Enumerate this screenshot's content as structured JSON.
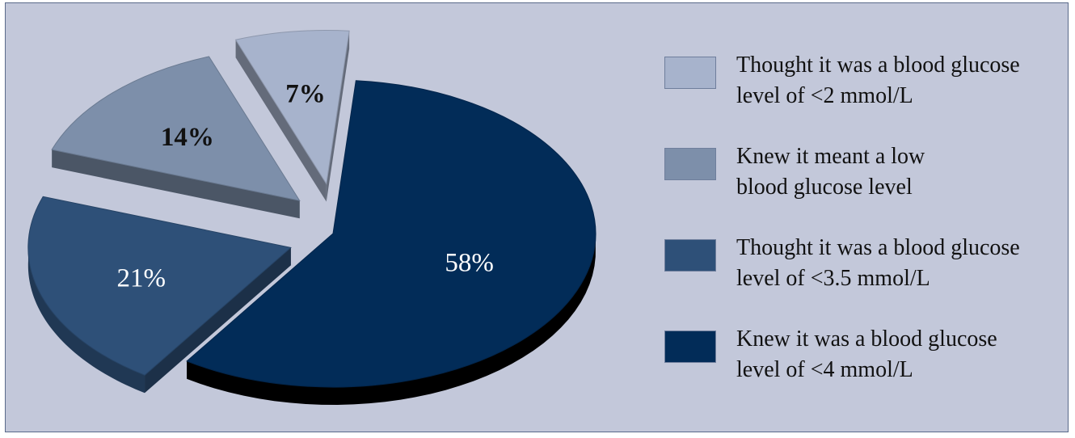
{
  "chart_data": {
    "type": "pie",
    "title": "",
    "slices": [
      {
        "label": "Knew it was a blood glucose level of <4 mmol/L",
        "legend_lines": [
          "Knew it was a blood glucose",
          "level of <4 mmol/L"
        ],
        "value": 58,
        "display": "58%",
        "color": "#022c58",
        "label_color": "#ffffff"
      },
      {
        "label": "Thought it was a blood glucose level of <3.5 mmol/L",
        "legend_lines": [
          "Thought it was a blood glucose",
          "level of <3.5 mmol/L"
        ],
        "value": 21,
        "display": "21%",
        "color": "#2e5078",
        "label_color": "#ffffff"
      },
      {
        "label": "Knew it meant a low blood glucose level",
        "legend_lines": [
          "Knew it meant a low",
          "blood glucose level"
        ],
        "value": 14,
        "display": "14%",
        "color": "#7d8faa",
        "label_color": "#111111"
      },
      {
        "label": "Thought it was a blood glucose level of <2 mmol/L",
        "legend_lines": [
          "Thought it was a blood glucose",
          "level of <2 mmol/L"
        ],
        "value": 7,
        "display": "7%",
        "color": "#a7b3cc",
        "label_color": "#111111"
      }
    ],
    "legend_order": [
      3,
      2,
      1,
      0
    ],
    "legend_position": "right",
    "exploded": true,
    "three_d": true
  }
}
